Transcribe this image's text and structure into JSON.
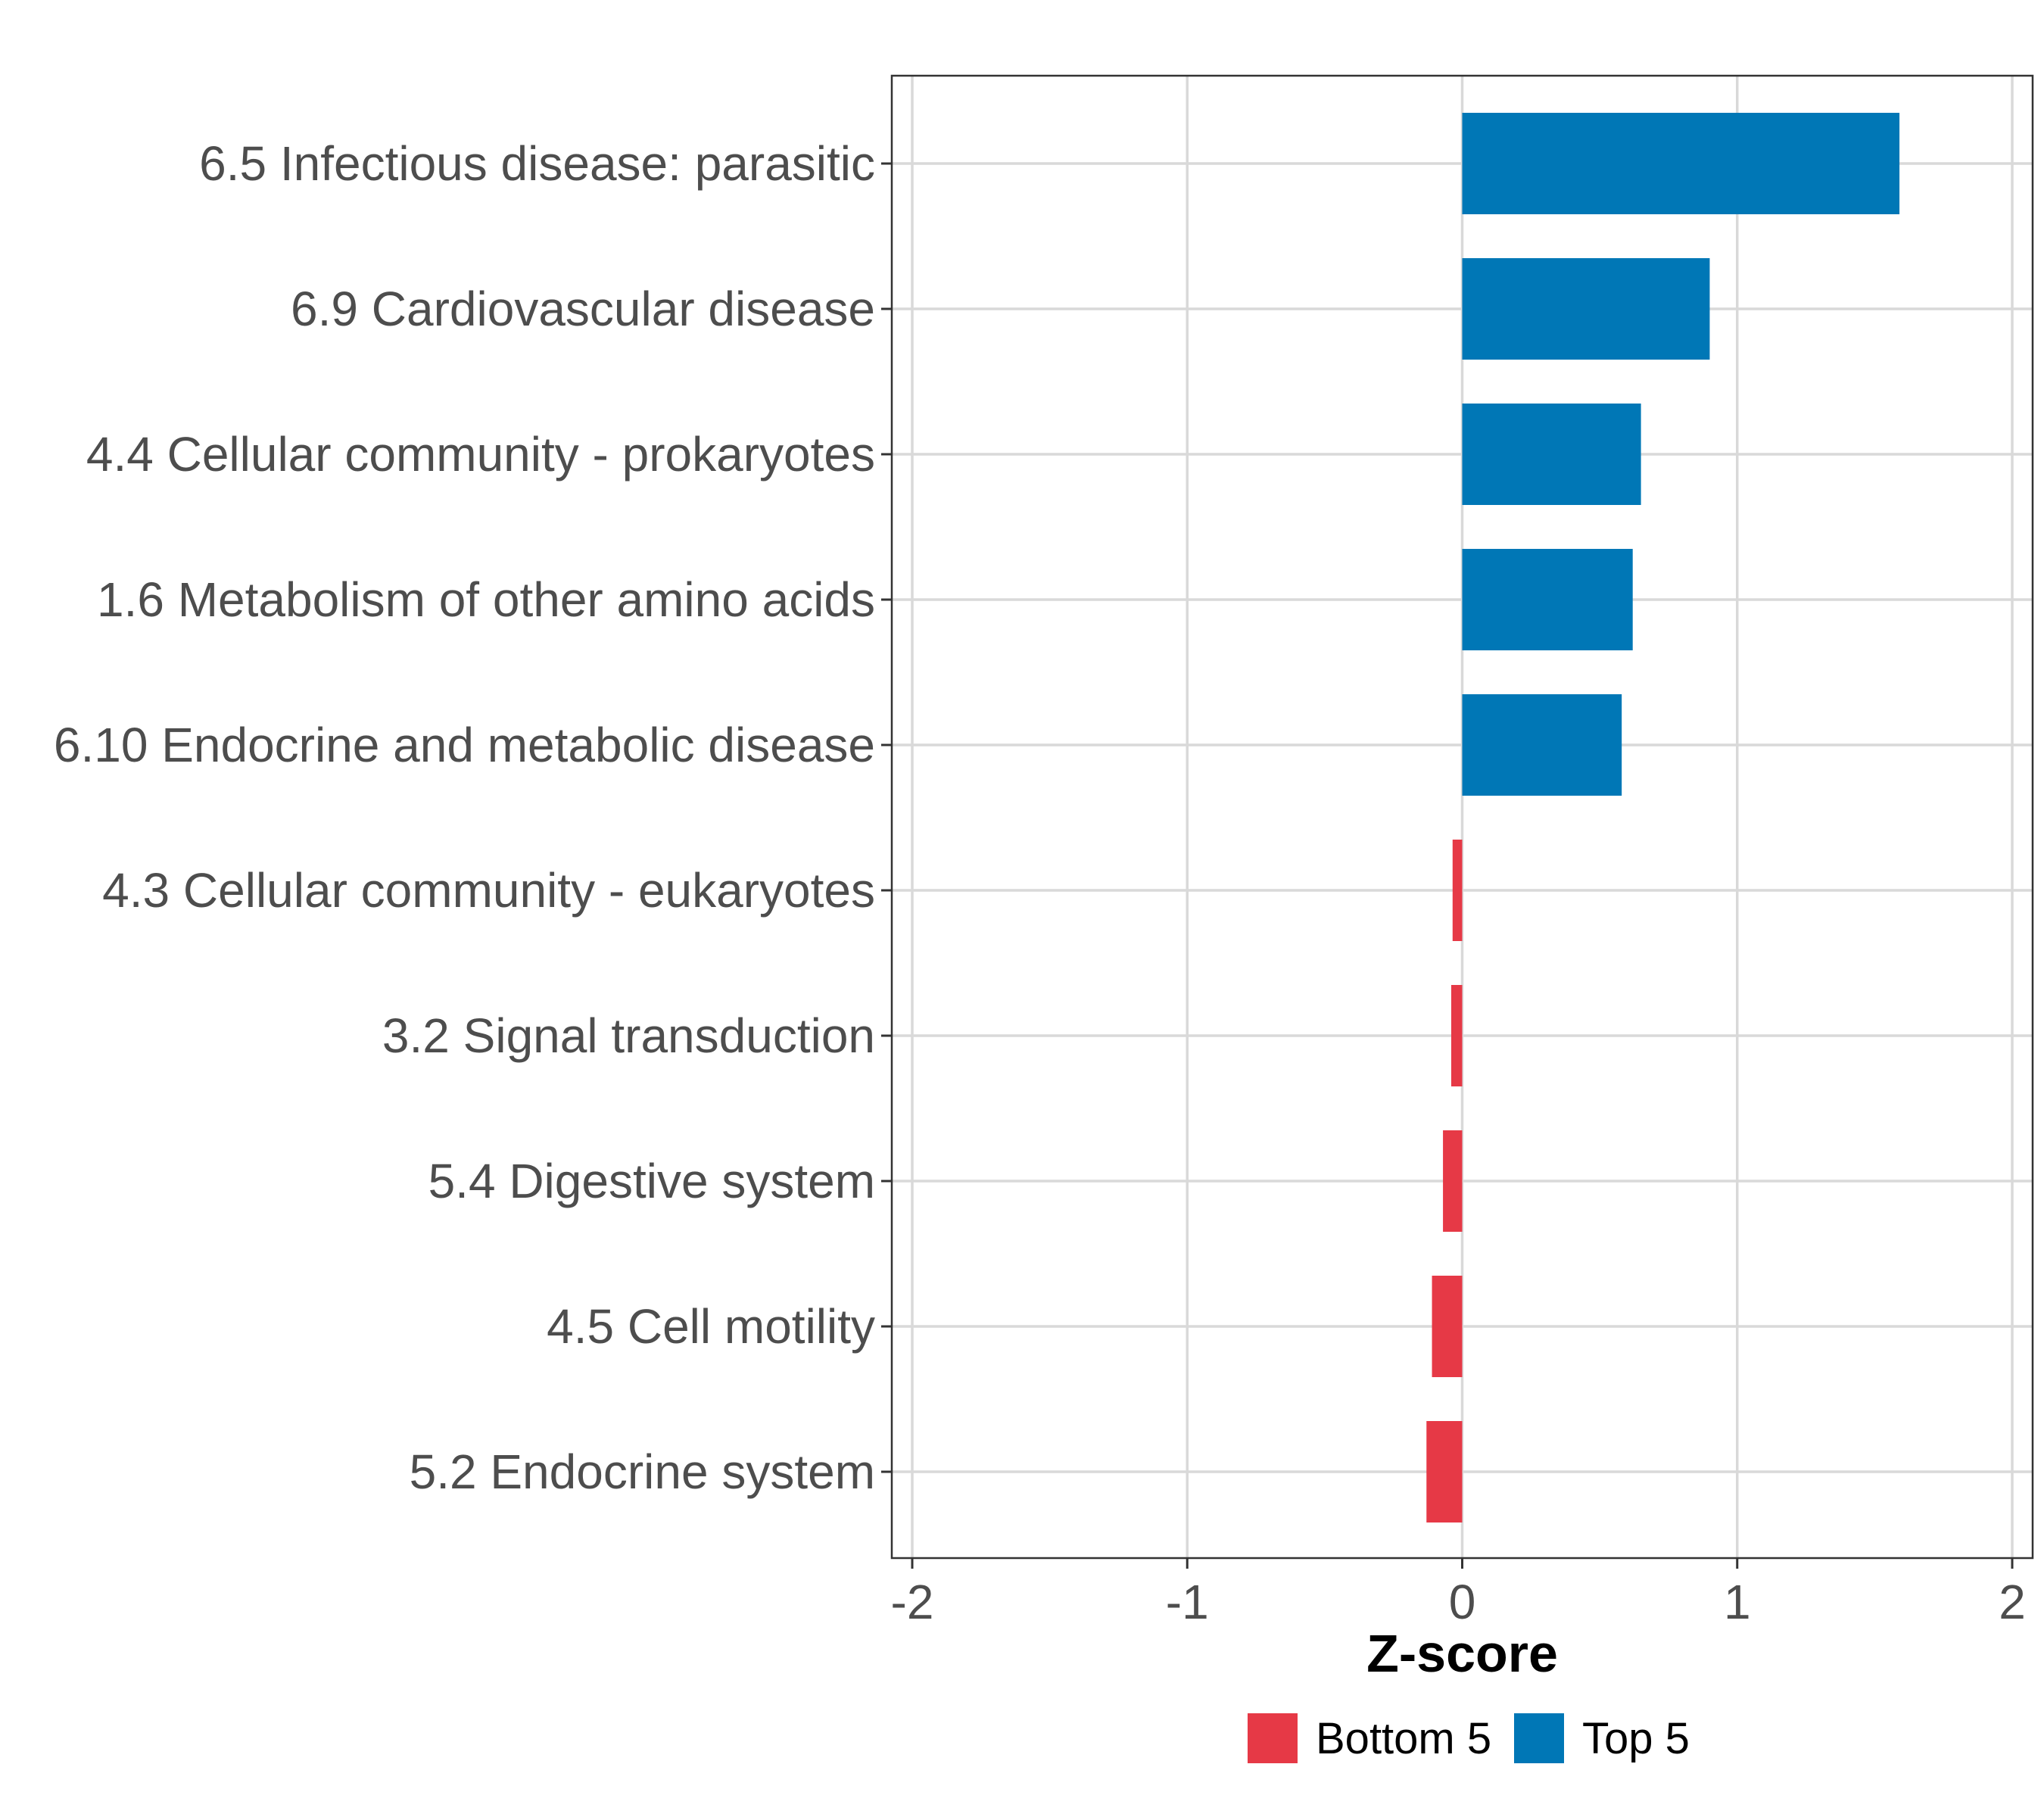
{
  "chart_data": {
    "type": "bar",
    "orientation": "horizontal",
    "title": "",
    "xlabel": "Z-score",
    "ylabel": "",
    "xlim": [
      -2,
      2
    ],
    "xticks": [
      "-2",
      "-1",
      "0",
      "1",
      "2"
    ],
    "grid": true,
    "categories": [
      "6.5 Infectious disease: parasitic",
      "6.9 Cardiovascular disease",
      "4.4 Cellular community - prokaryotes",
      "1.6 Metabolism of other amino acids",
      "6.10 Endocrine and metabolic disease",
      "4.3 Cellular community - eukaryotes",
      "3.2 Signal transduction",
      "5.4 Digestive system",
      "4.5 Cell motility",
      "5.2 Endocrine system"
    ],
    "values": [
      1.59,
      0.9,
      0.65,
      0.62,
      0.58,
      -0.035,
      -0.04,
      -0.07,
      -0.11,
      -0.13
    ],
    "groups": [
      "Top 5",
      "Top 5",
      "Top 5",
      "Top 5",
      "Top 5",
      "Bottom 5",
      "Bottom 5",
      "Bottom 5",
      "Bottom 5",
      "Bottom 5"
    ],
    "legend": {
      "position": "bottom",
      "entries": [
        {
          "name": "Bottom 5",
          "color": "#e63946"
        },
        {
          "name": "Top 5",
          "color": "#0077b6"
        }
      ]
    },
    "colors": {
      "Bottom 5": "#e63946",
      "Top 5": "#0077b6"
    }
  }
}
